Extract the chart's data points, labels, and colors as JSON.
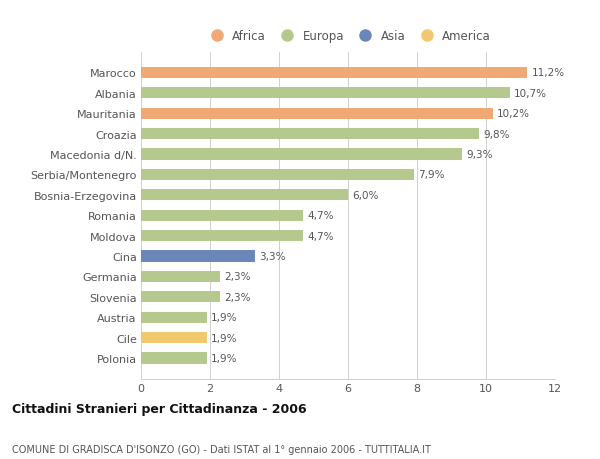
{
  "countries": [
    "Polonia",
    "Cile",
    "Austria",
    "Slovenia",
    "Germania",
    "Cina",
    "Moldova",
    "Romania",
    "Bosnia-Erzegovina",
    "Serbia/Montenegro",
    "Macedonia d/N.",
    "Croazia",
    "Mauritania",
    "Albania",
    "Marocco"
  ],
  "values": [
    1.9,
    1.9,
    1.9,
    2.3,
    2.3,
    3.3,
    4.7,
    4.7,
    6.0,
    7.9,
    9.3,
    9.8,
    10.2,
    10.7,
    11.2
  ],
  "labels": [
    "1,9%",
    "1,9%",
    "1,9%",
    "2,3%",
    "2,3%",
    "3,3%",
    "4,7%",
    "4,7%",
    "6,0%",
    "7,9%",
    "9,3%",
    "9,8%",
    "10,2%",
    "10,7%",
    "11,2%"
  ],
  "colors": [
    "#b5c98e",
    "#f0c96e",
    "#b5c98e",
    "#b5c98e",
    "#b5c98e",
    "#6b86b8",
    "#b5c98e",
    "#b5c98e",
    "#b5c98e",
    "#b5c98e",
    "#b5c98e",
    "#b5c98e",
    "#f0a875",
    "#b5c98e",
    "#f0a875"
  ],
  "legend": [
    {
      "label": "Africa",
      "color": "#f0a875"
    },
    {
      "label": "Europa",
      "color": "#b5c98e"
    },
    {
      "label": "Asia",
      "color": "#6b86b8"
    },
    {
      "label": "America",
      "color": "#f0c96e"
    }
  ],
  "title": "Cittadini Stranieri per Cittadinanza - 2006",
  "subtitle": "COMUNE DI GRADISCA D'ISONZO (GO) - Dati ISTAT al 1° gennaio 2006 - TUTTITALIA.IT",
  "xlim": [
    0,
    12
  ],
  "xticks": [
    0,
    2,
    4,
    6,
    8,
    10,
    12
  ],
  "bg_color": "#ffffff",
  "grid_color": "#d0d0d0",
  "bar_height": 0.55
}
